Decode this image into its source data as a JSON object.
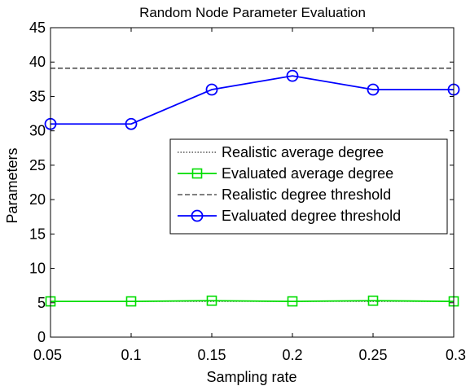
{
  "chart_data": {
    "type": "line",
    "title": "Random Node Parameter Evaluation",
    "xlabel": "Sampling rate",
    "ylabel": "Parameters",
    "xlim": [
      0.05,
      0.3
    ],
    "ylim": [
      0,
      45
    ],
    "xticks": [
      0.05,
      0.1,
      0.15,
      0.2,
      0.25,
      0.3
    ],
    "xtick_labels": [
      "0.05",
      "0.1",
      "0.15",
      "0.2",
      "0.25",
      "0.3"
    ],
    "yticks": [
      0,
      5,
      10,
      15,
      20,
      25,
      30,
      35,
      40,
      45
    ],
    "ytick_labels": [
      "0",
      "5",
      "10",
      "15",
      "20",
      "25",
      "30",
      "35",
      "40",
      "45"
    ],
    "grid": false,
    "legend_position": "center-right",
    "x": [
      0.05,
      0.1,
      0.15,
      0.2,
      0.25,
      0.3
    ],
    "series": [
      {
        "name": "Realistic average degree",
        "values": [
          5.2,
          5.2,
          5.2,
          5.2,
          5.2,
          5.2
        ],
        "color": "#000000",
        "line_style": "dotted",
        "marker": "none"
      },
      {
        "name": "Evaluated average degree",
        "values": [
          5.2,
          5.2,
          5.3,
          5.2,
          5.3,
          5.2
        ],
        "color": "#00dd00",
        "line_style": "solid",
        "marker": "square"
      },
      {
        "name": "Realistic degree threshold",
        "values": [
          39.1,
          39.1,
          39.1,
          39.1,
          39.1,
          39.1
        ],
        "color": "#000000",
        "line_style": "dashed",
        "marker": "none"
      },
      {
        "name": "Evaluated degree threshold",
        "values": [
          31,
          31,
          36,
          38,
          36,
          36
        ],
        "color": "#0000ff",
        "line_style": "solid",
        "marker": "circle"
      }
    ]
  }
}
